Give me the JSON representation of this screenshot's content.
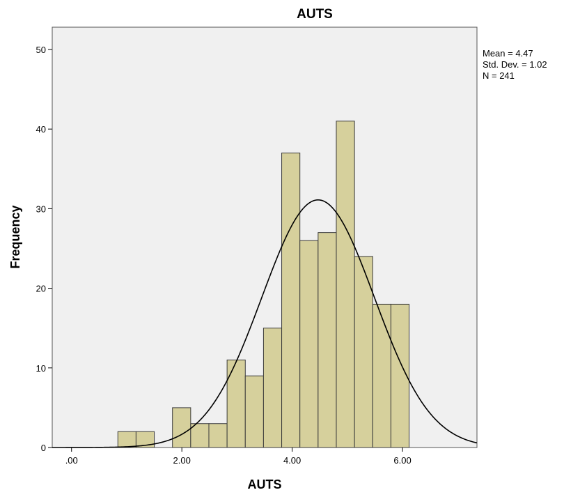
{
  "chart_data": {
    "type": "bar",
    "title": "AUTS",
    "xlabel": "AUTS",
    "ylabel": "Frequency",
    "xlim": [
      -0.35,
      7.35
    ],
    "ylim": [
      0,
      52.8
    ],
    "x_ticks": [
      0,
      2,
      4,
      6
    ],
    "x_tick_labels": [
      ".00",
      "2.00",
      "4.00",
      "6.00"
    ],
    "y_ticks": [
      0,
      10,
      20,
      30,
      40,
      50
    ],
    "y_tick_labels": [
      "0",
      "10",
      "20",
      "30",
      "40",
      "50"
    ],
    "bin_width": 0.33,
    "bins": [
      {
        "start": 0.84,
        "value": 2
      },
      {
        "start": 1.17,
        "value": 2
      },
      {
        "start": 1.83,
        "value": 5
      },
      {
        "start": 2.16,
        "value": 3
      },
      {
        "start": 2.49,
        "value": 3
      },
      {
        "start": 2.82,
        "value": 11
      },
      {
        "start": 3.15,
        "value": 9
      },
      {
        "start": 3.48,
        "value": 15
      },
      {
        "start": 3.81,
        "value": 37
      },
      {
        "start": 4.14,
        "value": 26
      },
      {
        "start": 4.47,
        "value": 27
      },
      {
        "start": 4.8,
        "value": 41
      },
      {
        "start": 5.13,
        "value": 24
      },
      {
        "start": 5.46,
        "value": 18
      },
      {
        "start": 5.79,
        "value": 18
      }
    ],
    "normal_curve": {
      "mean": 4.47,
      "std": 1.02,
      "n": 241
    },
    "stats_text": [
      "Mean = 4.47",
      "Std. Dev. = 1.02",
      "N = 241"
    ],
    "grid": false,
    "colors": {
      "bar_fill": "#d6d09c",
      "bar_stroke": "#3a3a3a",
      "plot_bg": "#f0f0f0",
      "curve": "#000000"
    }
  }
}
